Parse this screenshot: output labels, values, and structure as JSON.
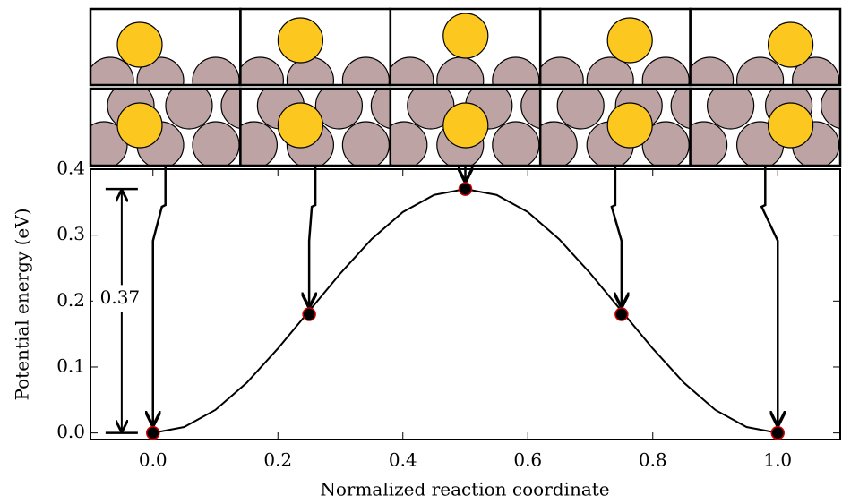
{
  "chart_data": {
    "type": "line",
    "xlabel": "Normalized reaction coordinate",
    "ylabel": "Potential energy (eV)",
    "xlim": [
      -0.1,
      1.1
    ],
    "ylim": [
      -0.01,
      0.4
    ],
    "xticks": [
      {
        "value": 0,
        "label": "0.0"
      },
      {
        "value": 0.2,
        "label": "0.2"
      },
      {
        "value": 0.4,
        "label": "0.4"
      },
      {
        "value": 0.6,
        "label": "0.6"
      },
      {
        "value": 0.8,
        "label": "0.8"
      },
      {
        "value": 1,
        "label": "1.0"
      }
    ],
    "yticks": [
      {
        "value": 0,
        "label": "0.0"
      },
      {
        "value": 0.1,
        "label": "0.1"
      },
      {
        "value": 0.2,
        "label": "0.2"
      },
      {
        "value": 0.3,
        "label": "0.3"
      },
      {
        "value": 0.4,
        "label": "0.4"
      }
    ],
    "series": [
      {
        "color": "#000000",
        "x": [
          0,
          0.05,
          0.1,
          0.15,
          0.2,
          0.25,
          0.3,
          0.35,
          0.4,
          0.45,
          0.5,
          0.55,
          0.6,
          0.65,
          0.7,
          0.75,
          0.8,
          0.85,
          0.9,
          0.95,
          1
        ],
        "values": [
          0,
          0.009,
          0.035,
          0.076,
          0.128,
          0.185,
          0.242,
          0.294,
          0.335,
          0.361,
          0.37,
          0.361,
          0.335,
          0.294,
          0.242,
          0.185,
          0.128,
          0.076,
          0.035,
          0.009,
          0
        ]
      },
      {
        "color": "#000000",
        "edge_color": "#cc0000",
        "x": [
          0,
          0.25,
          0.5,
          0.75,
          1
        ],
        "values": [
          0,
          0.18,
          0.37,
          0.18,
          0
        ]
      }
    ],
    "barrier": {
      "label": "0.37",
      "value": 0.37
    }
  }
}
